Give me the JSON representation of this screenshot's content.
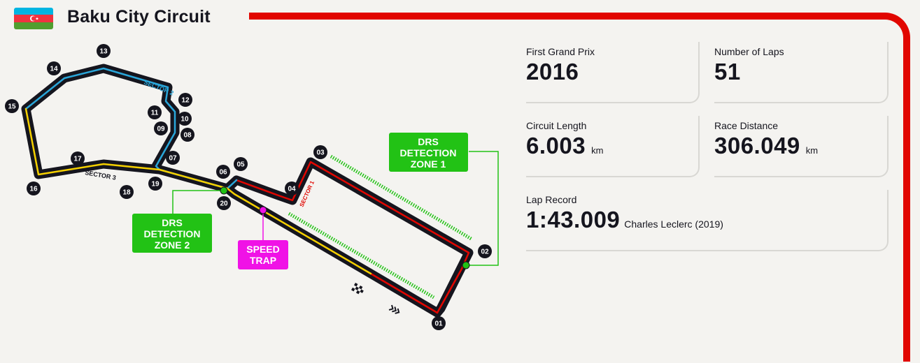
{
  "circuit": {
    "name": "Baku City Circuit",
    "flag": "azerbaijan-flag-icon"
  },
  "colors": {
    "accent_red": "#e10600",
    "sector1": "#e10600",
    "sector2": "#2aa6d9",
    "sector3": "#f5d000",
    "drs": "#22c215",
    "speed_trap": "#f012e6"
  },
  "stats": {
    "first_grand_prix": {
      "label": "First Grand Prix",
      "value": "2016"
    },
    "number_of_laps": {
      "label": "Number of Laps",
      "value": "51"
    },
    "circuit_length": {
      "label": "Circuit Length",
      "value": "6.003",
      "unit": "km"
    },
    "race_distance": {
      "label": "Race Distance",
      "value": "306.049",
      "unit": "km"
    },
    "lap_record": {
      "label": "Lap Record",
      "value": "1:43.009",
      "holder": "Charles Leclerc (2019)"
    }
  },
  "map": {
    "sectors": [
      "SECTOR 1",
      "SECTOR 2",
      "SECTOR 3"
    ],
    "corners": [
      "01",
      "02",
      "03",
      "04",
      "05",
      "06",
      "07",
      "08",
      "09",
      "10",
      "11",
      "12",
      "13",
      "14",
      "15",
      "16",
      "17",
      "18",
      "19",
      "20"
    ],
    "drs_zone_1": [
      "DRS",
      "DETECTION",
      "ZONE 1"
    ],
    "drs_zone_2": [
      "DRS",
      "DETECTION",
      "ZONE 2"
    ],
    "speed_trap": [
      "SPEED",
      "TRAP"
    ]
  }
}
